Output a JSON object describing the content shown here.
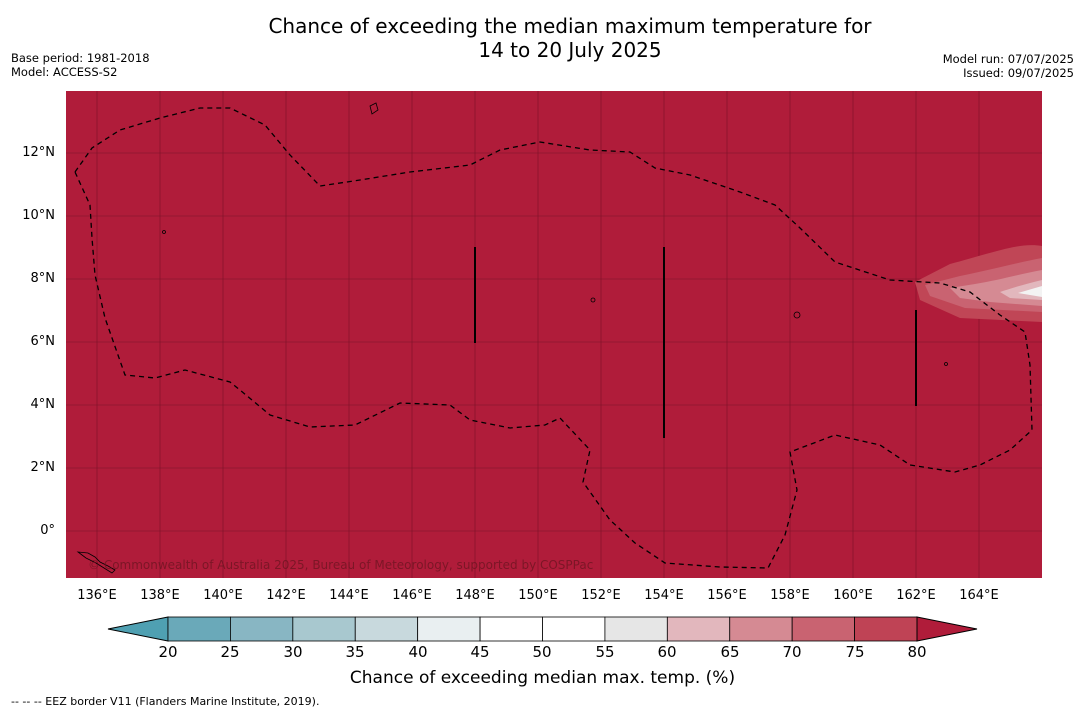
{
  "title": {
    "line1": "Chance of exceeding the median maximum temperature for",
    "line2": "14 to 20 July 2025"
  },
  "meta": {
    "base_period": "Base period: 1981-2018",
    "model": "Model: ACCESS-S2",
    "model_run": "Model run: 07/07/2025",
    "issued": "Issued: 09/07/2025"
  },
  "map": {
    "background_color": "#b01c3a",
    "lat_labels": [
      "12°N",
      "10°N",
      "8°N",
      "6°N",
      "4°N",
      "2°N",
      "0°"
    ],
    "lon_labels": [
      "136°E",
      "138°E",
      "140°E",
      "142°E",
      "144°E",
      "146°E",
      "148°E",
      "150°E",
      "152°E",
      "154°E",
      "156°E",
      "158°E",
      "160°E",
      "162°E",
      "164°E"
    ],
    "copyright": "© Commonwealth of Australia 2025, Bureau of Meteorology, supported by COSPPac"
  },
  "colorbar": {
    "ticks": [
      "20",
      "25",
      "30",
      "35",
      "40",
      "45",
      "50",
      "55",
      "60",
      "65",
      "70",
      "75",
      "80"
    ],
    "colors": [
      "#6aa9b9",
      "#88b6c3",
      "#a8c8cf",
      "#c8d9dd",
      "#e9eff1",
      "#ffffff",
      "#ffffff",
      "#e6e6e6",
      "#e2b7bd",
      "#d58a93",
      "#c96371",
      "#bf4355"
    ],
    "under_color": "#4fa0b2",
    "over_color": "#b01c3a",
    "label": "Chance of exceeding median max. temp. (%)"
  },
  "footer": {
    "legend": "--  --  -- EEZ border V11 (Flanders Marine Institute, 2019)."
  }
}
